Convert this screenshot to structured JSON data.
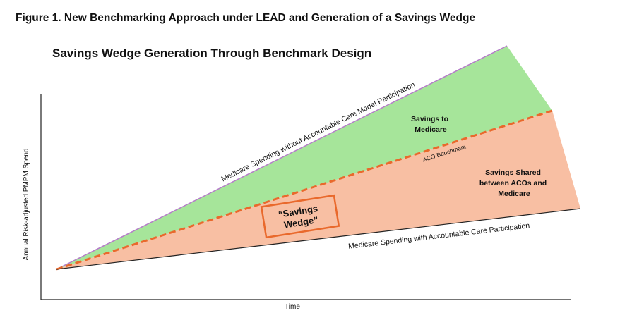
{
  "figure_title": "Figure 1. New Benchmarking Approach under LEAD and Generation of a Savings Wedge",
  "diagram_title": "Savings Wedge Generation Through Benchmark Design",
  "y_axis_label": "Annual Risk-adjusted PMPM Spend",
  "x_axis_label": "Time",
  "lines": {
    "without_model": "Medicare Spending without Accountable Care Model Participation",
    "benchmark": "ACO Benchmark",
    "with_participation": "Medicare Spending with Accountable Care Participation"
  },
  "regions": {
    "savings_to_medicare": [
      "Savings to",
      "Medicare"
    ],
    "savings_shared": [
      "Savings Shared",
      "between ACOs and",
      "Medicare"
    ],
    "savings_wedge": [
      "“Savings",
      "Wedge”"
    ]
  }
}
